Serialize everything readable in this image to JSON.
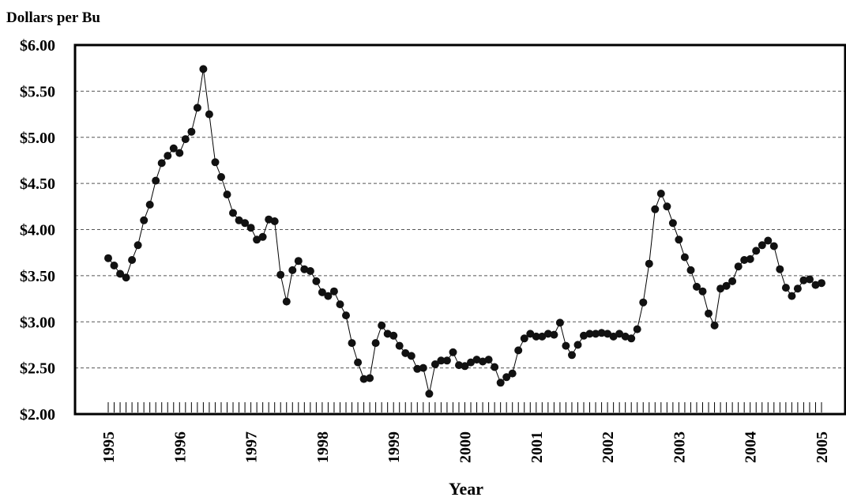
{
  "chart_data": {
    "type": "line",
    "ylabel": "Dollars per Bu",
    "xlabel": "Year",
    "ylim": [
      2.0,
      6.0
    ],
    "xlim": [
      1995,
      2005
    ],
    "y_ticks": [
      {
        "value": 6.0,
        "label": "$6.00"
      },
      {
        "value": 5.5,
        "label": "$5.50"
      },
      {
        "value": 5.0,
        "label": "$5.00"
      },
      {
        "value": 4.5,
        "label": "$4.50"
      },
      {
        "value": 4.0,
        "label": "$4.00"
      },
      {
        "value": 3.5,
        "label": "$3.50"
      },
      {
        "value": 3.0,
        "label": "$3.00"
      },
      {
        "value": 2.5,
        "label": "$2.50"
      },
      {
        "value": 2.0,
        "label": "$2.00"
      }
    ],
    "x_ticks": [
      "1995",
      "1996",
      "1997",
      "1998",
      "1999",
      "2000",
      "2001",
      "2002",
      "2003",
      "2004",
      "2005"
    ],
    "grid": "horizontal dashed",
    "marker": "filled circle",
    "colors": {
      "line": "#000000",
      "marker": "#111111",
      "grid": "#555555"
    },
    "series": [
      {
        "values": [
          3.69,
          3.61,
          3.52,
          3.48,
          3.67,
          3.83,
          4.1,
          4.27,
          4.53,
          4.72,
          4.8,
          4.88,
          4.83,
          4.98,
          5.06,
          5.32,
          5.74,
          5.25,
          4.73,
          4.57,
          4.38,
          4.18,
          4.1,
          4.07,
          4.02,
          3.89,
          3.92,
          4.11,
          4.09,
          3.51,
          3.22,
          3.56,
          3.66,
          3.57,
          3.55,
          3.44,
          3.32,
          3.28,
          3.33,
          3.19,
          3.07,
          2.77,
          2.56,
          2.38,
          2.39,
          2.77,
          2.96,
          2.87,
          2.85,
          2.74,
          2.66,
          2.63,
          2.49,
          2.5,
          2.22,
          2.54,
          2.58,
          2.58,
          2.67,
          2.53,
          2.52,
          2.56,
          2.59,
          2.57,
          2.59,
          2.51,
          2.34,
          2.4,
          2.44,
          2.69,
          2.82,
          2.87,
          2.84,
          2.84,
          2.87,
          2.86,
          2.99,
          2.74,
          2.64,
          2.75,
          2.85,
          2.87,
          2.87,
          2.88,
          2.87,
          2.84,
          2.87,
          2.84,
          2.82,
          2.92,
          3.21,
          3.63,
          4.22,
          4.39,
          4.25,
          4.07,
          3.89,
          3.7,
          3.56,
          3.38,
          3.33,
          3.09,
          2.96,
          3.36,
          3.39,
          3.44,
          3.6,
          3.67,
          3.68,
          3.77,
          3.83,
          3.88,
          3.82,
          3.57,
          3.37,
          3.28,
          3.36,
          3.45,
          3.46,
          3.4,
          3.42
        ]
      }
    ]
  }
}
